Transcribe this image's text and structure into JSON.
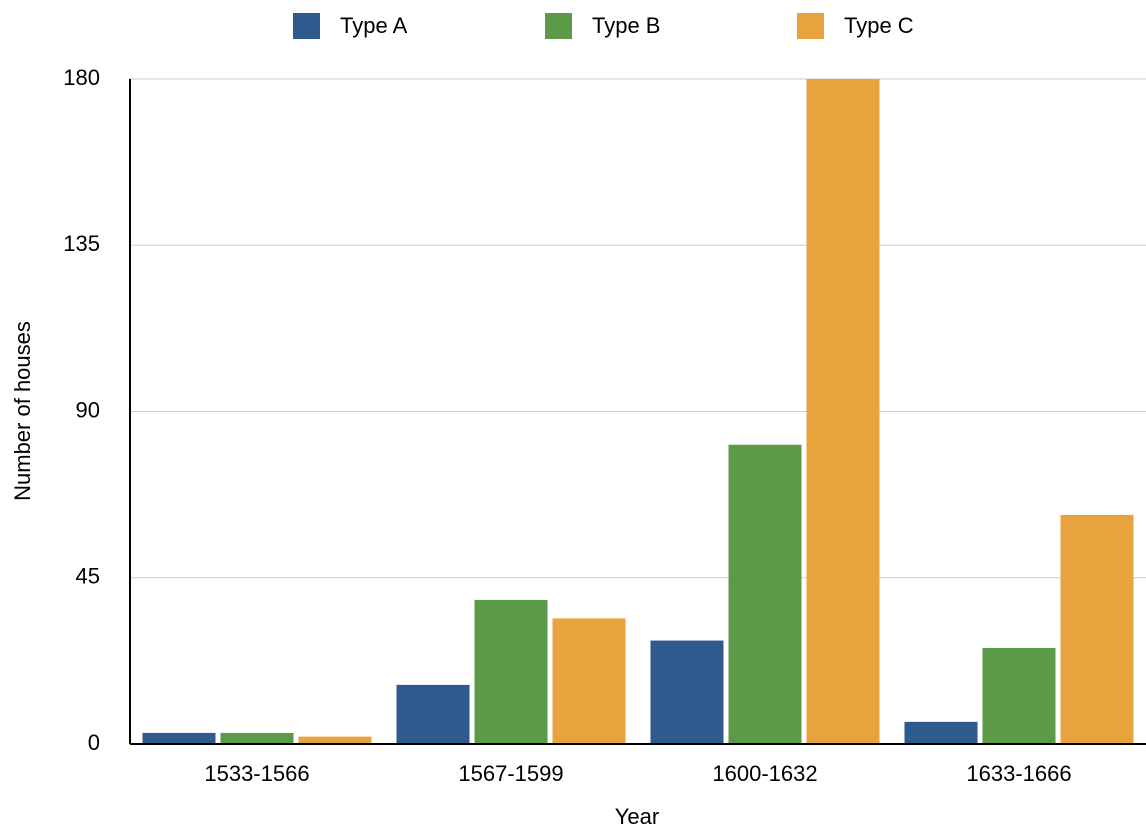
{
  "chart_data": {
    "type": "bar",
    "xlabel": "Year",
    "ylabel": "Number of houses",
    "categories": [
      "1533-1566",
      "1567-1599",
      "1600-1632",
      "1633-1666"
    ],
    "series": [
      {
        "name": "Type A",
        "color": "#2e5a8e",
        "values": [
          3,
          16,
          28,
          6
        ]
      },
      {
        "name": "Type B",
        "color": "#5c9a47",
        "values": [
          3,
          39,
          81,
          26
        ]
      },
      {
        "name": "Type C",
        "color": "#e8a33d",
        "values": [
          2,
          34,
          180,
          62
        ]
      }
    ],
    "ylim": [
      0,
      180
    ],
    "yticks": [
      0,
      45,
      90,
      135,
      180
    ],
    "grid": true,
    "legend": "top"
  }
}
